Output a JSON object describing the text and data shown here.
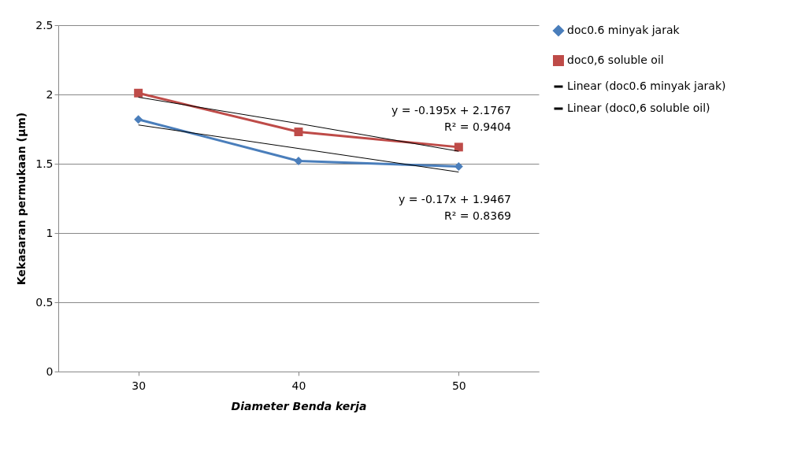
{
  "chart_data": {
    "type": "line",
    "xlabel": "Diameter Benda kerja",
    "ylabel": "Kekasaran permukaan (µm)",
    "categories": [
      "30",
      "40",
      "50"
    ],
    "series": [
      {
        "name": "doc0.6 minyak jarak",
        "color": "#4a7ebb",
        "values": [
          1.82,
          1.52,
          1.48
        ],
        "marker": "diamond"
      },
      {
        "name": "doc0,6 soluble oil",
        "color": "#be4b48",
        "values": [
          2.01,
          1.73,
          1.62
        ],
        "marker": "square"
      },
      {
        "name": "Linear (doc0.6 minyak jarak)",
        "color": "#000000",
        "values": [
          1.78,
          1.61,
          1.44
        ],
        "marker": "none"
      },
      {
        "name": "Linear (doc0,6 soluble oil)",
        "color": "#000000",
        "values": [
          1.98,
          1.79,
          1.59
        ],
        "marker": "none"
      }
    ],
    "ylim": [
      0,
      2.5
    ],
    "yticks": [
      0,
      0.5,
      1,
      1.5,
      2,
      2.5
    ],
    "grid": "y",
    "legend": "right",
    "line_style": "solid",
    "annotations": [
      "y = -0.195x + 2.1767",
      "R² = 0.9404",
      "y = -0.17x + 1.9467",
      "R² = 0.8369"
    ]
  }
}
